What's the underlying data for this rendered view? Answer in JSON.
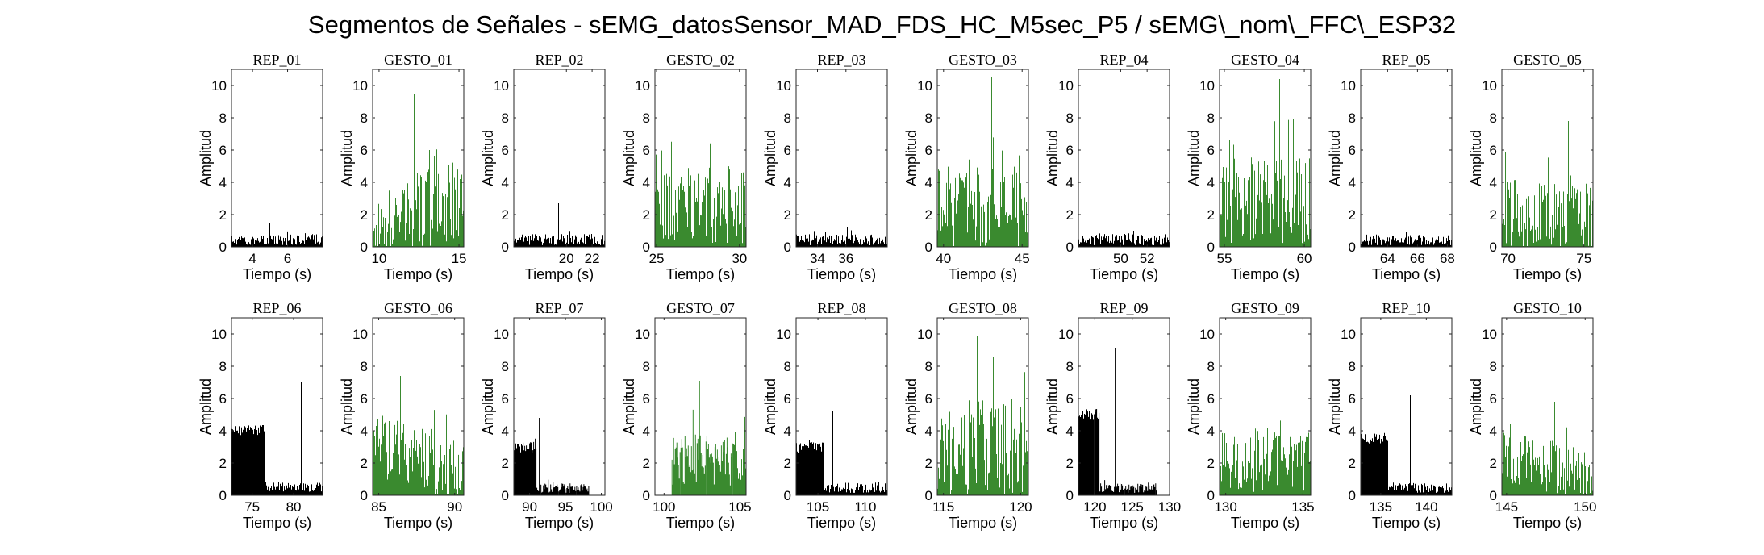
{
  "figure": {
    "suptitle": "Segmentos de Señales - sEMG_datosSensor_MAD_FDS_HC_M5sec_P5 / sEMG\\_nom\\_FFC\\_ESP32",
    "colors": {
      "rep": "#000000",
      "gesto": "#3a8a2f"
    }
  },
  "chart_data": [
    {
      "type": "bar",
      "title": "REP_01",
      "kind": "rep",
      "xlabel": "Tiempo (s)",
      "ylabel": "Amplitud",
      "xlim": [
        2.8,
        8.0
      ],
      "ylim": [
        0,
        11
      ],
      "xticks": [
        4,
        6
      ],
      "yticks": [
        0,
        2,
        4,
        6,
        8,
        10
      ],
      "envelope": {
        "base": 0.45,
        "noise": 0.35,
        "peak": 1.5
      }
    },
    {
      "type": "bar",
      "title": "GESTO_01",
      "kind": "gesto",
      "xlabel": "Tiempo (s)",
      "ylabel": "Amplitud",
      "xlim": [
        9.6,
        15.3
      ],
      "ylim": [
        0,
        11
      ],
      "xticks": [
        10,
        15
      ],
      "yticks": [
        0,
        2,
        4,
        6,
        8,
        10
      ],
      "envelope": {
        "base": 2.2,
        "noise": 2.4,
        "peak": 9.5,
        "trend": "rising"
      }
    },
    {
      "type": "bar",
      "title": "REP_02",
      "kind": "rep",
      "xlabel": "Tiempo (s)",
      "ylabel": "Amplitud",
      "xlim": [
        15.9,
        23.0
      ],
      "ylim": [
        0,
        11
      ],
      "xticks": [
        20,
        22
      ],
      "yticks": [
        0,
        2,
        4,
        6,
        8,
        10
      ],
      "envelope": {
        "base": 0.45,
        "noise": 0.35,
        "peak": 2.7
      }
    },
    {
      "type": "bar",
      "title": "GESTO_02",
      "kind": "gesto",
      "xlabel": "Tiempo (s)",
      "ylabel": "Amplitud",
      "xlim": [
        24.9,
        30.4
      ],
      "ylim": [
        0,
        11
      ],
      "xticks": [
        25,
        30
      ],
      "yticks": [
        0,
        2,
        4,
        6,
        8,
        10
      ],
      "envelope": {
        "base": 2.6,
        "noise": 2.4,
        "peak": 8.8
      }
    },
    {
      "type": "bar",
      "title": "REP_03",
      "kind": "rep",
      "xlabel": "Tiempo (s)",
      "ylabel": "Amplitud",
      "xlim": [
        32.5,
        38.9
      ],
      "ylim": [
        0,
        11
      ],
      "xticks": [
        34,
        36
      ],
      "yticks": [
        0,
        2,
        4,
        6,
        8,
        10
      ],
      "envelope": {
        "base": 0.45,
        "noise": 0.35,
        "peak": 1.2
      }
    },
    {
      "type": "bar",
      "title": "GESTO_03",
      "kind": "gesto",
      "xlabel": "Tiempo (s)",
      "ylabel": "Amplitud",
      "xlim": [
        39.6,
        45.4
      ],
      "ylim": [
        0,
        11
      ],
      "xticks": [
        40,
        45
      ],
      "yticks": [
        0,
        2,
        4,
        6,
        8,
        10
      ],
      "envelope": {
        "base": 2.4,
        "noise": 2.6,
        "peak": 10.5
      }
    },
    {
      "type": "bar",
      "title": "REP_04",
      "kind": "rep",
      "xlabel": "Tiempo (s)",
      "ylabel": "Amplitud",
      "xlim": [
        46.8,
        53.7
      ],
      "ylim": [
        0,
        11
      ],
      "xticks": [
        50,
        52
      ],
      "yticks": [
        0,
        2,
        4,
        6,
        8,
        10
      ],
      "envelope": {
        "base": 0.45,
        "noise": 0.35,
        "peak": 1.0
      }
    },
    {
      "type": "bar",
      "title": "GESTO_04",
      "kind": "gesto",
      "xlabel": "Tiempo (s)",
      "ylabel": "Amplitud",
      "xlim": [
        54.7,
        60.4
      ],
      "ylim": [
        0,
        11
      ],
      "xticks": [
        55,
        60
      ],
      "yticks": [
        0,
        2,
        4,
        6,
        8,
        10
      ],
      "envelope": {
        "base": 2.8,
        "noise": 2.8,
        "peak": 10.4
      }
    },
    {
      "type": "bar",
      "title": "REP_05",
      "kind": "rep",
      "xlabel": "Tiempo (s)",
      "ylabel": "Amplitud",
      "xlim": [
        62.2,
        68.3
      ],
      "ylim": [
        0,
        11
      ],
      "xticks": [
        64,
        66,
        68
      ],
      "yticks": [
        0,
        2,
        4,
        6,
        8,
        10
      ],
      "envelope": {
        "base": 0.45,
        "noise": 0.35,
        "peak": 0.9
      }
    },
    {
      "type": "bar",
      "title": "GESTO_05",
      "kind": "gesto",
      "xlabel": "Tiempo (s)",
      "ylabel": "Amplitud",
      "xlim": [
        69.6,
        75.6
      ],
      "ylim": [
        0,
        11
      ],
      "xticks": [
        70,
        75
      ],
      "yticks": [
        0,
        2,
        4,
        6,
        8,
        10
      ],
      "envelope": {
        "base": 2.0,
        "noise": 2.2,
        "peak": 7.8
      }
    },
    {
      "type": "bar",
      "title": "REP_06",
      "kind": "rep",
      "xlabel": "Tiempo (s)",
      "ylabel": "Amplitud",
      "xlim": [
        72.5,
        83.5
      ],
      "ylim": [
        0,
        11
      ],
      "xticks": [
        75,
        80
      ],
      "yticks": [
        0,
        2,
        4,
        6,
        8,
        10
      ],
      "envelope": {
        "base": 0.5,
        "noise": 0.3,
        "peak": 7.0,
        "burst": [
          72.5,
          76.5
        ],
        "burst_level": 4.0
      }
    },
    {
      "type": "bar",
      "title": "GESTO_06",
      "kind": "gesto",
      "xlabel": "Tiempo (s)",
      "ylabel": "Amplitud",
      "xlim": [
        84.6,
        90.6
      ],
      "ylim": [
        0,
        11
      ],
      "xticks": [
        85,
        90
      ],
      "yticks": [
        0,
        2,
        4,
        6,
        8,
        10
      ],
      "envelope": {
        "base": 2.3,
        "noise": 2.0,
        "peak": 7.4,
        "trend": "falling"
      }
    },
    {
      "type": "bar",
      "title": "REP_07",
      "kind": "rep",
      "xlabel": "Tiempo (s)",
      "ylabel": "Amplitud",
      "xlim": [
        87.8,
        100.5
      ],
      "ylim": [
        0,
        11
      ],
      "xticks": [
        90,
        95,
        100
      ],
      "yticks": [
        0,
        2,
        4,
        6,
        8,
        10
      ],
      "envelope": {
        "base": 0.45,
        "noise": 0.3,
        "peak": 4.8,
        "burst": [
          87.8,
          91.0
        ],
        "burst_level": 3.0,
        "end": 98.3
      }
    },
    {
      "type": "bar",
      "title": "GESTO_07",
      "kind": "gesto",
      "xlabel": "Tiempo (s)",
      "ylabel": "Amplitud",
      "xlim": [
        99.4,
        105.4
      ],
      "ylim": [
        0,
        11
      ],
      "xticks": [
        100,
        105
      ],
      "yticks": [
        0,
        2,
        4,
        6,
        8,
        10
      ],
      "envelope": {
        "base": 2.2,
        "noise": 1.6,
        "peak": 7.1,
        "start": 100.5
      }
    },
    {
      "type": "bar",
      "title": "REP_08",
      "kind": "rep",
      "xlabel": "Tiempo (s)",
      "ylabel": "Amplitud",
      "xlim": [
        102.7,
        112.3
      ],
      "ylim": [
        0,
        11
      ],
      "xticks": [
        105,
        110
      ],
      "yticks": [
        0,
        2,
        4,
        6,
        8,
        10
      ],
      "envelope": {
        "base": 0.5,
        "noise": 0.35,
        "peak": 5.2,
        "burst": [
          102.7,
          105.6
        ],
        "burst_level": 3.0
      }
    },
    {
      "type": "bar",
      "title": "GESTO_08",
      "kind": "gesto",
      "xlabel": "Tiempo (s)",
      "ylabel": "Amplitud",
      "xlim": [
        114.6,
        120.5
      ],
      "ylim": [
        0,
        11
      ],
      "xticks": [
        115,
        120
      ],
      "yticks": [
        0,
        2,
        4,
        6,
        8,
        10
      ],
      "envelope": {
        "base": 3.0,
        "noise": 3.0,
        "peak": 9.9
      }
    },
    {
      "type": "bar",
      "title": "REP_09",
      "kind": "rep",
      "xlabel": "Tiempo (s)",
      "ylabel": "Amplitud",
      "xlim": [
        117.8,
        130.0
      ],
      "ylim": [
        0,
        11
      ],
      "xticks": [
        120,
        125,
        130
      ],
      "yticks": [
        0,
        2,
        4,
        6,
        8,
        10
      ],
      "envelope": {
        "base": 0.45,
        "noise": 0.3,
        "peak": 9.1,
        "burst": [
          117.8,
          120.6
        ],
        "burst_level": 5.0,
        "end": 128.3
      }
    },
    {
      "type": "bar",
      "title": "GESTO_09",
      "kind": "gesto",
      "xlabel": "Tiempo (s)",
      "ylabel": "Amplitud",
      "xlim": [
        129.6,
        135.5
      ],
      "ylim": [
        0,
        11
      ],
      "xticks": [
        130,
        135
      ],
      "yticks": [
        0,
        2,
        4,
        6,
        8,
        10
      ],
      "envelope": {
        "base": 2.2,
        "noise": 2.0,
        "peak": 8.4
      }
    },
    {
      "type": "bar",
      "title": "REP_10",
      "kind": "rep",
      "xlabel": "Tiempo (s)",
      "ylabel": "Amplitud",
      "xlim": [
        132.8,
        142.8
      ],
      "ylim": [
        0,
        11
      ],
      "xticks": [
        135,
        140
      ],
      "yticks": [
        0,
        2,
        4,
        6,
        8,
        10
      ],
      "envelope": {
        "base": 0.45,
        "noise": 0.3,
        "peak": 6.2,
        "burst": [
          132.8,
          135.8
        ],
        "burst_level": 3.5
      }
    },
    {
      "type": "bar",
      "title": "GESTO_10",
      "kind": "gesto",
      "xlabel": "Tiempo (s)",
      "ylabel": "Amplitud",
      "xlim": [
        144.7,
        150.5
      ],
      "ylim": [
        0,
        11
      ],
      "xticks": [
        145,
        150
      ],
      "yticks": [
        0,
        2,
        4,
        6,
        8,
        10
      ],
      "envelope": {
        "base": 1.8,
        "noise": 1.6,
        "peak": 5.8,
        "trend": "falling"
      }
    }
  ]
}
